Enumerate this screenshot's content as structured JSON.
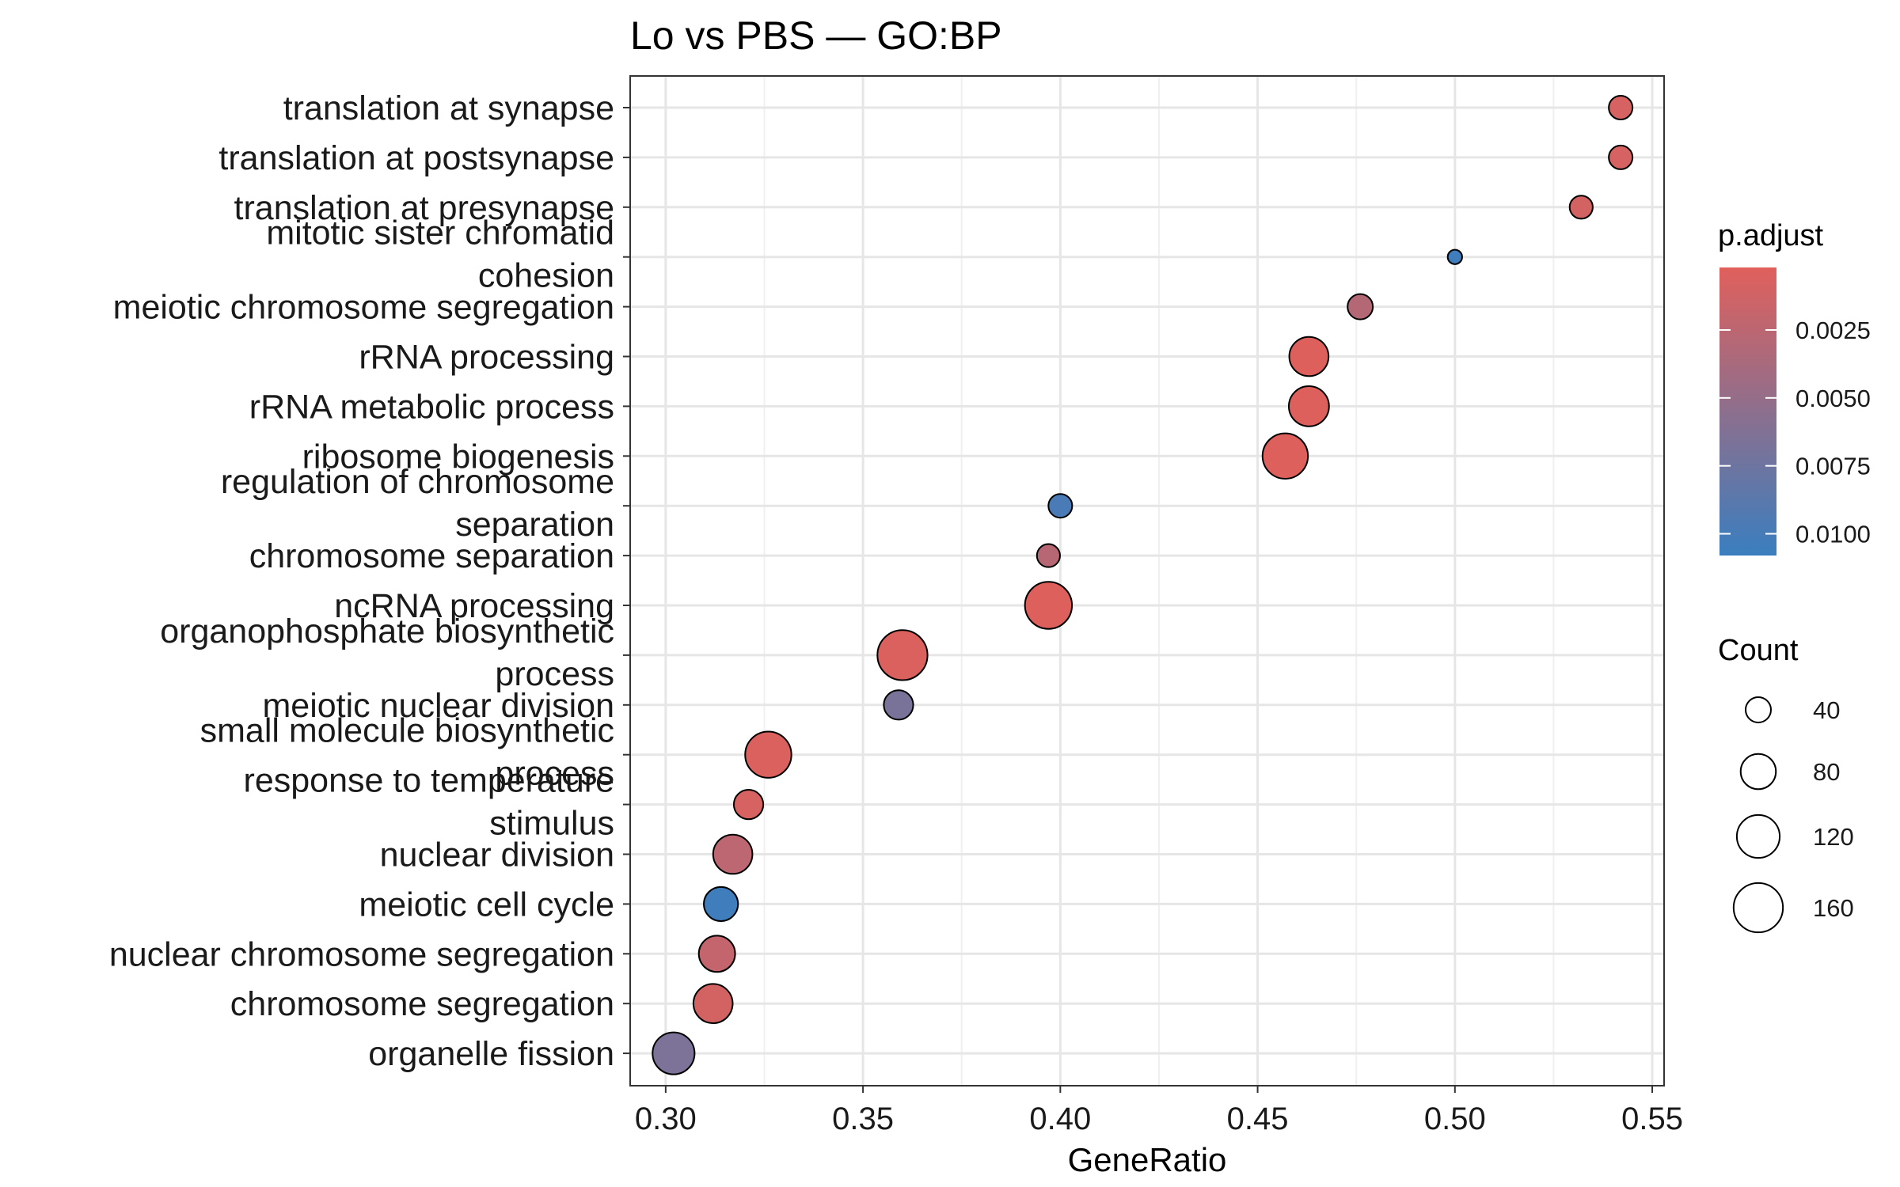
{
  "chart_data": {
    "type": "scatter",
    "title": "Lo vs PBS — GO:BP",
    "xlabel": "GeneRatio",
    "ylabel": "",
    "xlim": [
      0.291,
      0.553
    ],
    "xticks": [
      "0.30",
      "0.35",
      "0.40",
      "0.45",
      "0.50",
      "0.55"
    ],
    "grid": true,
    "legend_position": "right",
    "categories": [
      [
        "translation at synapse"
      ],
      [
        "translation at postsynapse"
      ],
      [
        "translation at presynapse"
      ],
      [
        "mitotic sister chromatid",
        "cohesion"
      ],
      [
        "meiotic chromosome segregation"
      ],
      [
        "rRNA processing"
      ],
      [
        "rRNA metabolic process"
      ],
      [
        "ribosome biogenesis"
      ],
      [
        "regulation of chromosome",
        "separation"
      ],
      [
        "chromosome separation"
      ],
      [
        "ncRNA processing"
      ],
      [
        "organophosphate biosynthetic",
        "process"
      ],
      [
        "meiotic nuclear division"
      ],
      [
        "small molecule biosynthetic",
        "process"
      ],
      [
        "response to temperature",
        "stimulus"
      ],
      [
        "nuclear division"
      ],
      [
        "meiotic cell cycle"
      ],
      [
        "nuclear chromosome segregation"
      ],
      [
        "chromosome segregation"
      ],
      [
        "organelle fission"
      ]
    ],
    "points": [
      {
        "term": "translation at synapse",
        "gene_ratio": 0.542,
        "count": 35,
        "p_adjust": 0.0008
      },
      {
        "term": "translation at postsynapse",
        "gene_ratio": 0.542,
        "count": 35,
        "p_adjust": 0.0008
      },
      {
        "term": "translation at presynapse",
        "gene_ratio": 0.532,
        "count": 33,
        "p_adjust": 0.001
      },
      {
        "term": "mitotic sister chromatid cohesion",
        "gene_ratio": 0.5,
        "count": 12,
        "p_adjust": 0.0105
      },
      {
        "term": "meiotic chromosome segregation",
        "gene_ratio": 0.476,
        "count": 40,
        "p_adjust": 0.003
      },
      {
        "term": "rRNA processing",
        "gene_ratio": 0.463,
        "count": 100,
        "p_adjust": 0.0003
      },
      {
        "term": "rRNA metabolic process",
        "gene_ratio": 0.463,
        "count": 105,
        "p_adjust": 0.0003
      },
      {
        "term": "ribosome biogenesis",
        "gene_ratio": 0.457,
        "count": 135,
        "p_adjust": 0.0003
      },
      {
        "term": "regulation of chromosome separation",
        "gene_ratio": 0.4,
        "count": 35,
        "p_adjust": 0.0098
      },
      {
        "term": "chromosome separation",
        "gene_ratio": 0.397,
        "count": 33,
        "p_adjust": 0.0028
      },
      {
        "term": "ncRNA processing",
        "gene_ratio": 0.397,
        "count": 145,
        "p_adjust": 0.0003
      },
      {
        "term": "organophosphate biosynthetic process",
        "gene_ratio": 0.36,
        "count": 165,
        "p_adjust": 0.0005
      },
      {
        "term": "meiotic nuclear division",
        "gene_ratio": 0.359,
        "count": 55,
        "p_adjust": 0.0068
      },
      {
        "term": "small molecule biosynthetic process",
        "gene_ratio": 0.326,
        "count": 140,
        "p_adjust": 0.0005
      },
      {
        "term": "response to temperature stimulus",
        "gene_ratio": 0.321,
        "count": 55,
        "p_adjust": 0.0008
      },
      {
        "term": "nuclear division",
        "gene_ratio": 0.317,
        "count": 100,
        "p_adjust": 0.0025
      },
      {
        "term": "meiotic cell cycle",
        "gene_ratio": 0.314,
        "count": 75,
        "p_adjust": 0.0105
      },
      {
        "term": "nuclear chromosome segregation",
        "gene_ratio": 0.313,
        "count": 85,
        "p_adjust": 0.002
      },
      {
        "term": "chromosome segregation",
        "gene_ratio": 0.312,
        "count": 100,
        "p_adjust": 0.001
      },
      {
        "term": "organelle fission",
        "gene_ratio": 0.302,
        "count": 115,
        "p_adjust": 0.0065
      }
    ],
    "color_legend": {
      "title": "p.adjust",
      "colors": {
        "low": "#e0605c",
        "high": "#3a7ebf"
      },
      "range": [
        0.0002,
        0.0108
      ],
      "ticks": [
        {
          "value": 0.0025,
          "label": "0.0025"
        },
        {
          "value": 0.005,
          "label": "0.0050"
        },
        {
          "value": 0.0075,
          "label": "0.0075"
        },
        {
          "value": 0.01,
          "label": "0.0100"
        }
      ]
    },
    "size_legend": {
      "title": "Count",
      "entries": [
        {
          "count": 40,
          "label": "40"
        },
        {
          "count": 80,
          "label": "80"
        },
        {
          "count": 120,
          "label": "120"
        },
        {
          "count": 160,
          "label": "160"
        }
      ]
    }
  }
}
